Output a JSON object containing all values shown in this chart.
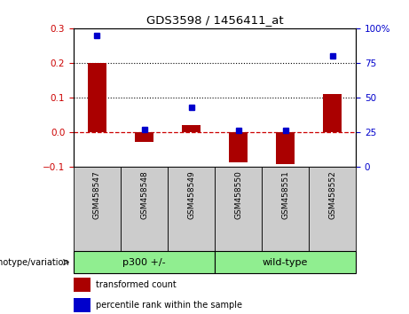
{
  "title": "GDS3598 / 1456411_at",
  "categories": [
    "GSM458547",
    "GSM458548",
    "GSM458549",
    "GSM458550",
    "GSM458551",
    "GSM458552"
  ],
  "red_values": [
    0.2,
    -0.03,
    0.02,
    -0.088,
    -0.092,
    0.11
  ],
  "blue_values": [
    95,
    27,
    43,
    26,
    26,
    80
  ],
  "ylim_left": [
    -0.1,
    0.3
  ],
  "ylim_right": [
    0,
    100
  ],
  "yticks_left": [
    -0.1,
    0.0,
    0.1,
    0.2,
    0.3
  ],
  "yticks_right": [
    0,
    25,
    50,
    75,
    100
  ],
  "ytick_labels_right": [
    "0",
    "25",
    "50",
    "75",
    "100%"
  ],
  "hlines": [
    0.1,
    0.2
  ],
  "bar_color": "#AA0000",
  "dot_color": "#0000CC",
  "zero_line_color": "#CC0000",
  "group_label": "genotype/variation",
  "group1_label": "p300 +/-",
  "group2_label": "wild-type",
  "group_color": "#90EE90",
  "sample_box_color": "#cccccc",
  "legend_red": "transformed count",
  "legend_blue": "percentile rank within the sample",
  "background_color": "#ffffff"
}
